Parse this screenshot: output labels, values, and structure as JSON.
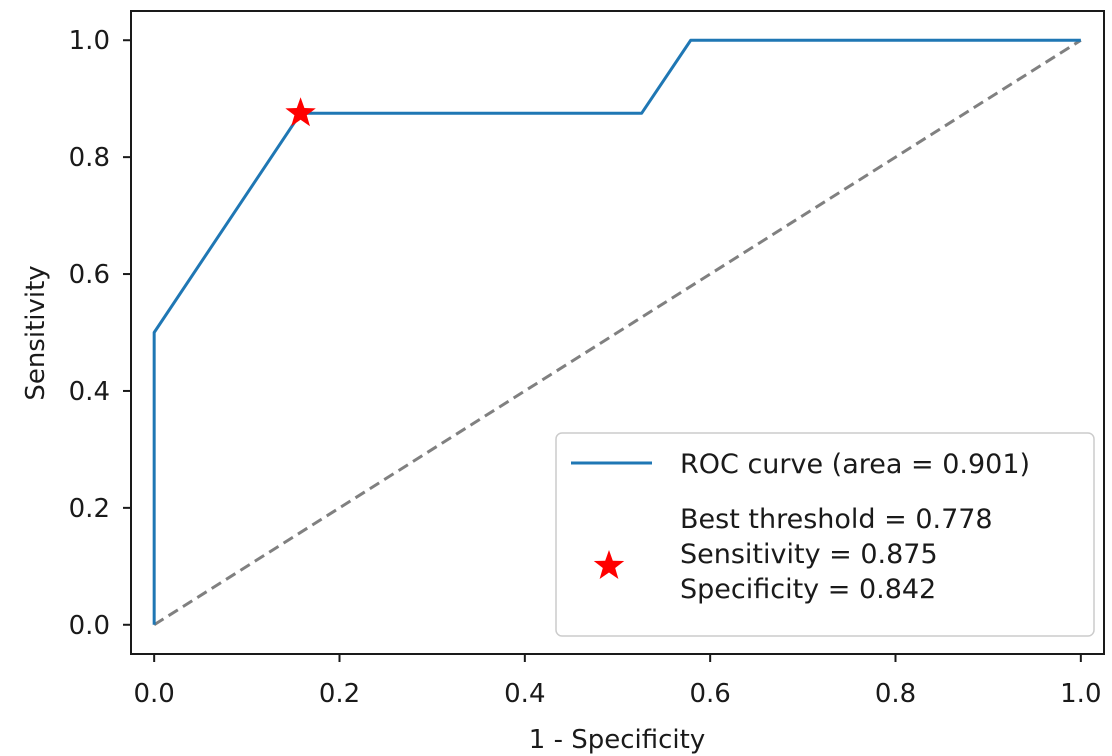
{
  "chart_data": {
    "type": "line",
    "title": "",
    "xlabel": "1 - Specificity",
    "ylabel": "Sensitivity",
    "xlim": [
      -0.025,
      1.025
    ],
    "ylim": [
      -0.05,
      1.05
    ],
    "xticks": [
      0.0,
      0.2,
      0.4,
      0.6,
      0.8,
      1.0
    ],
    "yticks": [
      0.0,
      0.2,
      0.4,
      0.6,
      0.8,
      1.0
    ],
    "xtick_labels": [
      "0.0",
      "0.2",
      "0.4",
      "0.6",
      "0.8",
      "1.0"
    ],
    "ytick_labels": [
      "0.0",
      "0.2",
      "0.4",
      "0.6",
      "0.8",
      "1.0"
    ],
    "grid": false,
    "legend_position": "lower-right",
    "series": [
      {
        "name": "ROC curve (area = 0.901)",
        "color": "#1f77b4",
        "style": "solid",
        "x": [
          0.0,
          0.0,
          0.158,
          0.526,
          0.579,
          1.0
        ],
        "y": [
          0.0,
          0.5,
          0.875,
          0.875,
          1.0,
          1.0
        ]
      },
      {
        "color": "#808080",
        "style": "dashed",
        "x": [
          0.0,
          1.0
        ],
        "y": [
          0.0,
          1.0
        ]
      }
    ],
    "markers": [
      {
        "shape": "star",
        "color": "#ff0000",
        "x": 0.158,
        "y": 0.875,
        "label_lines": [
          "Best threshold = 0.778",
          "Sensitivity = 0.875",
          "Specificity = 0.842"
        ]
      }
    ]
  }
}
